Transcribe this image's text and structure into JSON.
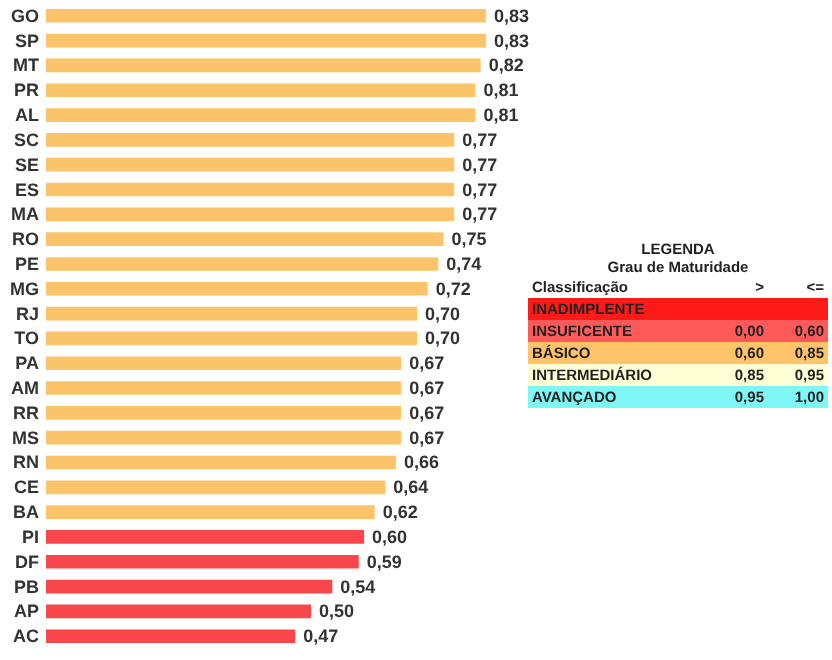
{
  "chart_data": {
    "type": "bar",
    "orientation": "horizontal",
    "categories": [
      "GO",
      "SP",
      "MT",
      "PR",
      "AL",
      "SC",
      "SE",
      "ES",
      "MA",
      "RO",
      "PE",
      "MG",
      "RJ",
      "TO",
      "PA",
      "AM",
      "RR",
      "MS",
      "RN",
      "CE",
      "BA",
      "PI",
      "DF",
      "PB",
      "AP",
      "AC"
    ],
    "values": [
      0.83,
      0.83,
      0.82,
      0.81,
      0.81,
      0.77,
      0.77,
      0.77,
      0.77,
      0.75,
      0.74,
      0.72,
      0.7,
      0.7,
      0.67,
      0.67,
      0.67,
      0.67,
      0.66,
      0.64,
      0.62,
      0.6,
      0.59,
      0.54,
      0.5,
      0.47
    ],
    "value_labels": [
      "0,83",
      "0,83",
      "0,82",
      "0,81",
      "0,81",
      "0,77",
      "0,77",
      "0,77",
      "0,77",
      "0,75",
      "0,74",
      "0,72",
      "0,70",
      "0,70",
      "0,67",
      "0,67",
      "0,67",
      "0,67",
      "0,66",
      "0,64",
      "0,62",
      "0,60",
      "0,59",
      "0,54",
      "0,50",
      "0,47"
    ],
    "colors": [
      "#fcc46a",
      "#fcc46a",
      "#fcc46a",
      "#fcc46a",
      "#fcc46a",
      "#fcc46a",
      "#fcc46a",
      "#fcc46a",
      "#fcc46a",
      "#fcc46a",
      "#fcc46a",
      "#fcc46a",
      "#fcc46a",
      "#fcc46a",
      "#fcc46a",
      "#fcc46a",
      "#fcc46a",
      "#fcc46a",
      "#fcc46a",
      "#fcc46a",
      "#fcc46a",
      "#f7474a",
      "#f7474a",
      "#f7474a",
      "#f7474a",
      "#f7474a"
    ],
    "annotations": [
      "LEGENDA",
      "Grau de Maturidade",
      "Classificação",
      ">",
      "<=",
      "INADIMPLENTE",
      "INSUFICENTE",
      "0,00",
      "0,60",
      "BÁSICO",
      "0,60",
      "0,85",
      "INTERMEDIÁRIO",
      "0,85",
      "0,95",
      "AVANÇADO",
      "0,95",
      "1,00"
    ]
  }
}
